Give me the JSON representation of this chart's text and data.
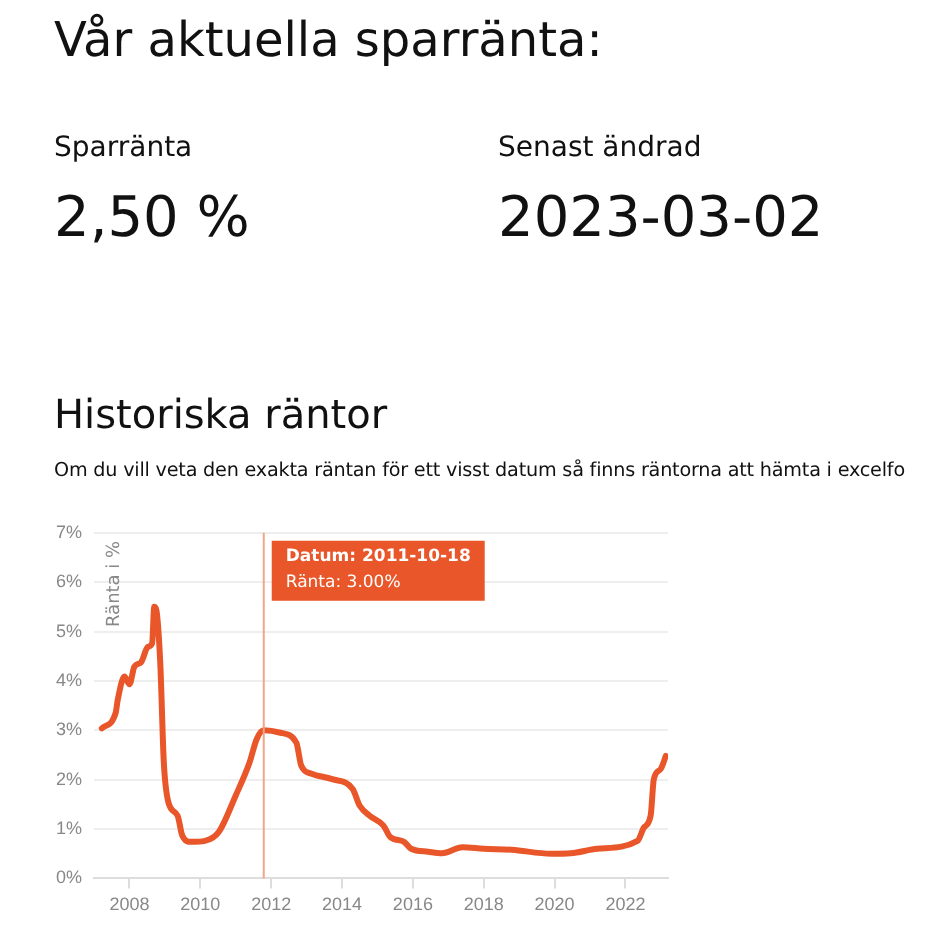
{
  "chart_data": {
    "type": "line",
    "title": "Historiska räntor",
    "subtitle": "Om du vill veta den exakta räntan för ett visst datum så finns räntorna att hämta i excelfo",
    "ylabel": "Ränta i %",
    "annotations": [
      "Vår aktuella sparränta:",
      "Sparränta",
      "2,50 %",
      "Senast ändrad",
      "2023-03-02",
      "Datum: 2011-10-18",
      "Ränta: 3.00%"
    ],
    "series": [
      {
        "color": "#e8562a",
        "x": [
          2007.22,
          2007.61,
          2007.67,
          2007.86,
          2008.0,
          2008.14,
          2008.33,
          2008.52,
          2008.64,
          2008.7,
          2008.76,
          2008.87,
          2008.97,
          2009.1,
          2009.36,
          2009.49,
          2009.74,
          2010.13,
          2010.52,
          2011.0,
          2011.39,
          2011.59,
          2011.79,
          2012.26,
          2012.71,
          2012.85,
          2013.14,
          2013.72,
          2014.3,
          2014.5,
          2014.78,
          2015.17,
          2015.36,
          2015.75,
          2015.95,
          2016.43,
          2016.82,
          2017.4,
          2018.0,
          2018.79,
          2019.9,
          2020.46,
          2021.2,
          2022.34,
          2022.52,
          2022.71,
          2022.8,
          2022.99,
          2023.14
        ],
        "values": [
          3.04,
          3.35,
          3.62,
          4.09,
          3.93,
          4.29,
          4.38,
          4.69,
          4.76,
          5.5,
          5.43,
          4.36,
          2.35,
          1.54,
          1.27,
          0.87,
          0.74,
          0.76,
          0.94,
          1.68,
          2.35,
          2.82,
          3.0,
          2.95,
          2.75,
          2.28,
          2.12,
          2.01,
          1.81,
          1.47,
          1.27,
          1.07,
          0.84,
          0.74,
          0.6,
          0.54,
          0.51,
          0.63,
          0.6,
          0.58,
          0.5,
          0.51,
          0.6,
          0.76,
          1.03,
          1.27,
          2.01,
          2.21,
          2.48
        ]
      }
    ],
    "xlim": [
      2007,
      2023.2
    ],
    "xticks": [
      2008,
      2010,
      2012,
      2014,
      2016,
      2018,
      2020,
      2022
    ],
    "ylim": [
      0,
      7
    ],
    "yticks": [
      {
        "value": 0,
        "label": "0%"
      },
      {
        "value": 1,
        "label": "1%"
      },
      {
        "value": 2,
        "label": "2%"
      },
      {
        "value": 3,
        "label": "3%"
      },
      {
        "value": 4,
        "label": "4%"
      },
      {
        "value": 5,
        "label": "5%"
      },
      {
        "value": 6,
        "label": "6%"
      },
      {
        "value": 7,
        "label": "7%"
      }
    ],
    "grid": "y",
    "legend": false,
    "marker": "none",
    "line_style": "solid",
    "ref_lines": [
      {
        "axis": "x",
        "value": 2011.79,
        "color": "#f2a58a"
      }
    ]
  }
}
